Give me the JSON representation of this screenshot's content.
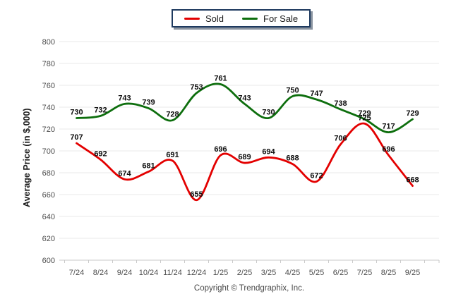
{
  "chart_data": {
    "type": "line",
    "title": "",
    "categories": [
      "7/24",
      "8/24",
      "9/24",
      "10/24",
      "11/24",
      "12/24",
      "1/25",
      "2/25",
      "3/25",
      "4/25",
      "5/25",
      "6/25",
      "7/25",
      "8/25",
      "9/25"
    ],
    "series": [
      {
        "name": "Sold",
        "color": "#e30000",
        "values": [
          707,
          692,
          674,
          681,
          691,
          655,
          696,
          689,
          694,
          688,
          672,
          706,
          725,
          696,
          668
        ]
      },
      {
        "name": "For Sale",
        "color": "#0d6e0d",
        "values": [
          730,
          732,
          743,
          739,
          728,
          753,
          761,
          743,
          730,
          750,
          747,
          738,
          729,
          717,
          729
        ]
      }
    ],
    "xlabel": "",
    "ylabel": "Average Price (in $,000)",
    "ylim": [
      600,
      800
    ],
    "ytick_step": 20,
    "grid": true,
    "legend_position": "top-center",
    "line_style": "smooth",
    "point_labels": true,
    "footer": "Copyright © Trendgraphix, Inc.",
    "colors": {
      "grid_line": "#eaeaea",
      "axis_line": "#c9c9c9",
      "tick_text": "#4d4d4d",
      "label_text": "#0d0d0d",
      "legend_border": "#1e3a5f"
    }
  }
}
